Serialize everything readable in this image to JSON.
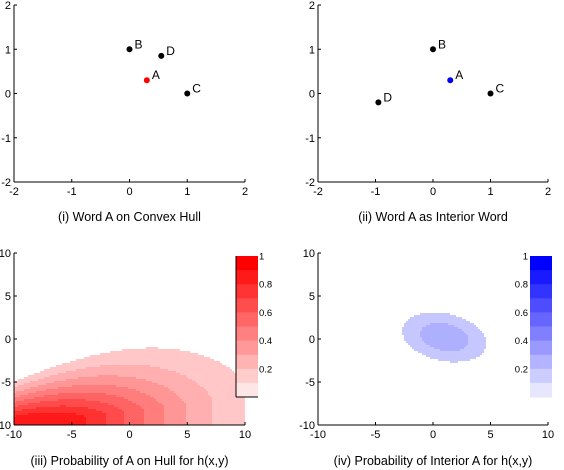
{
  "chart_data": [
    {
      "type": "scatter",
      "caption": "(i) Word A on Convex Hull",
      "xlim": [
        -2,
        2
      ],
      "ylim": [
        -2,
        2
      ],
      "xticks": [
        "-2",
        "-1",
        "0",
        "1",
        "2"
      ],
      "yticks": [
        "-2",
        "-1",
        "0",
        "1",
        "2"
      ],
      "points": [
        {
          "label": "A",
          "x": 0.3,
          "y": 0.3,
          "color": "#ff0000"
        },
        {
          "label": "B",
          "x": 0.0,
          "y": 1.0,
          "color": "#000000"
        },
        {
          "label": "C",
          "x": 1.0,
          "y": 0.0,
          "color": "#000000"
        },
        {
          "label": "D",
          "x": 0.55,
          "y": 0.85,
          "color": "#000000"
        }
      ]
    },
    {
      "type": "scatter",
      "caption": "(ii) Word A as Interior Word",
      "xlim": [
        -2,
        2
      ],
      "ylim": [
        -2,
        2
      ],
      "xticks": [
        "-2",
        "-1",
        "0",
        "1",
        "2"
      ],
      "yticks": [
        "-2",
        "-1",
        "0",
        "1",
        "2"
      ],
      "points": [
        {
          "label": "A",
          "x": 0.3,
          "y": 0.3,
          "color": "#0000ff"
        },
        {
          "label": "B",
          "x": 0.0,
          "y": 1.0,
          "color": "#000000"
        },
        {
          "label": "C",
          "x": 1.0,
          "y": 0.0,
          "color": "#000000"
        },
        {
          "label": "D",
          "x": -0.95,
          "y": -0.2,
          "color": "#000000"
        }
      ]
    },
    {
      "type": "contour",
      "caption": "(iii) Probability of A on Hull for h(x,y)",
      "xlim": [
        -10,
        10
      ],
      "ylim": [
        -10,
        10
      ],
      "xticks": [
        "-10",
        "-5",
        "0",
        "5",
        "10"
      ],
      "yticks": [
        "-10",
        "-5",
        "0",
        "5",
        "10"
      ],
      "colormap_color": "#ff0000",
      "colorbar": {
        "range": [
          0,
          1
        ],
        "ticks": [
          "1",
          "0.8",
          "0.6",
          "0.4",
          "0.2"
        ]
      },
      "levels": [
        0.1,
        0.2,
        0.3,
        0.4,
        0.5,
        0.6,
        0.7,
        0.8
      ]
    },
    {
      "type": "contour",
      "caption": "(iv) Probability of Interior A for h(x,y)",
      "xlim": [
        -10,
        10
      ],
      "ylim": [
        -10,
        10
      ],
      "xticks": [
        "-10",
        "-5",
        "0",
        "5",
        "10"
      ],
      "yticks": [
        "-10",
        "-5",
        "0",
        "5",
        "10"
      ],
      "colormap_color": "#0000ff",
      "colorbar": {
        "range": [
          0,
          1
        ],
        "ticks": [
          "1",
          "0.8",
          "0.6",
          "0.4",
          "0.2"
        ]
      },
      "levels": [
        0.1,
        0.2
      ]
    }
  ]
}
